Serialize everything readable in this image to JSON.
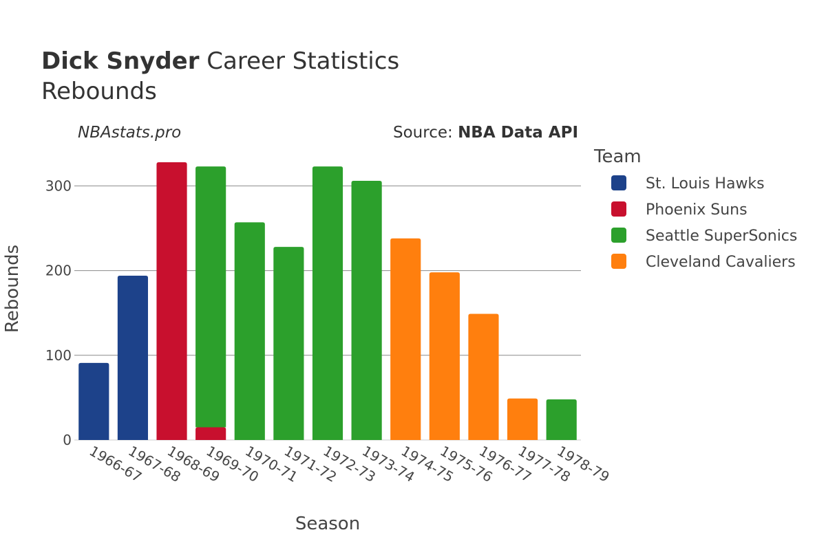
{
  "title_bold": "Dick Snyder",
  "title_rest": " Career Statistics",
  "subtitle": "Rebounds",
  "watermark": "NBAstats.pro",
  "source_label": "Source: ",
  "source_value": "NBA Data API",
  "chart_data": {
    "type": "bar",
    "barmode": "stack",
    "xlabel": "Season",
    "ylabel": "Rebounds",
    "ylim": [
      0,
      345
    ],
    "yticks": [
      0,
      100,
      200,
      300
    ],
    "categories": [
      "1966-67",
      "1967-68",
      "1968-69",
      "1969-70",
      "1970-71",
      "1971-72",
      "1972-73",
      "1973-74",
      "1974-75",
      "1975-76",
      "1976-77",
      "1977-78",
      "1978-79"
    ],
    "legend_title": "Team",
    "series": [
      {
        "name": "St. Louis Hawks",
        "color": "#1d428a",
        "values": [
          91,
          194,
          0,
          0,
          0,
          0,
          0,
          0,
          0,
          0,
          0,
          0,
          0
        ]
      },
      {
        "name": "Phoenix Suns",
        "color": "#c8102e",
        "values": [
          0,
          0,
          328,
          15,
          0,
          0,
          0,
          0,
          0,
          0,
          0,
          0,
          0
        ]
      },
      {
        "name": "Seattle SuperSonics",
        "color": "#2ca02c",
        "values": [
          0,
          0,
          0,
          308,
          257,
          228,
          323,
          306,
          0,
          0,
          0,
          0,
          48
        ]
      },
      {
        "name": "Cleveland Cavaliers",
        "color": "#ff7f0e",
        "values": [
          0,
          0,
          0,
          0,
          0,
          0,
          0,
          0,
          238,
          198,
          149,
          49,
          0
        ]
      }
    ]
  }
}
